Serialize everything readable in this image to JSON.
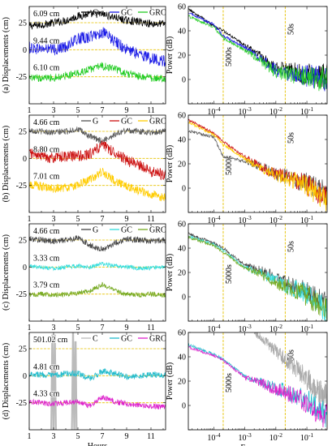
{
  "chart_data": [
    {
      "type": "line",
      "panel": "a-left",
      "ylabel": "(a) Displacements (cm)",
      "xlabel": "",
      "xlim": [
        1,
        12.2
      ],
      "ylim": [
        -50,
        40
      ],
      "xticks": [
        1,
        3,
        5,
        7,
        9,
        11
      ],
      "yticks": [
        -25,
        0,
        25
      ],
      "ref_lines": [
        25,
        0,
        -25
      ],
      "legend": [
        "G",
        "GC",
        "GRC"
      ],
      "legend_colors": [
        "#000000",
        "#1a1ae6",
        "#22cc22"
      ],
      "annotations": [
        "6.09 cm",
        "9.44 cm",
        "6.10 cm"
      ],
      "series": [
        {
          "name": "G",
          "color": "#000000",
          "offset": 25,
          "amp": 6.1,
          "x": [
            1,
            2,
            3,
            4,
            5,
            6,
            7,
            8,
            9,
            10,
            11,
            12
          ],
          "y": [
            22,
            23,
            25,
            27,
            31,
            33,
            33,
            30,
            27,
            26,
            24,
            24
          ]
        },
        {
          "name": "GC",
          "color": "#1a1ae6",
          "offset": 0,
          "amp": 9.4,
          "x": [
            1,
            2,
            3,
            4,
            5,
            6,
            7,
            8,
            9,
            10,
            11,
            12
          ],
          "y": [
            2,
            1,
            0,
            3,
            10,
            12,
            16,
            8,
            0,
            -4,
            -8,
            -10
          ]
        },
        {
          "name": "GRC",
          "color": "#22cc22",
          "offset": -25,
          "amp": 6.1,
          "x": [
            1,
            2,
            3,
            4,
            5,
            6,
            7,
            8,
            9,
            10,
            11,
            12
          ],
          "y": [
            -27,
            -26,
            -26,
            -24,
            -22,
            -18,
            -15,
            -18,
            -22,
            -24,
            -26,
            -27
          ]
        }
      ]
    },
    {
      "type": "line",
      "panel": "a-right",
      "ylabel": "Power (dB)",
      "xlabel": "",
      "xscale": "log",
      "xlim": [
        1.5e-05,
        0.45
      ],
      "ylim": [
        -20,
        60
      ],
      "yticks": [
        -20,
        0,
        20,
        40,
        60
      ],
      "xticks": [
        "10^-4",
        "10^-3",
        "10^-2",
        "10^-1"
      ],
      "vlines": [
        {
          "x": 0.0002,
          "label": "5000s"
        },
        {
          "x": 0.02,
          "label": "50s"
        }
      ],
      "series": [
        {
          "name": "G",
          "color": "#000000",
          "x": [
            1.5e-05,
            0.0001,
            0.0002,
            0.001,
            0.003,
            0.01,
            0.02,
            0.1,
            0.45
          ],
          "y": [
            58,
            44,
            40,
            28,
            20,
            10,
            8,
            4,
            2
          ]
        },
        {
          "name": "GC",
          "color": "#1a1ae6",
          "x": [
            1.5e-05,
            0.0001,
            0.0002,
            0.001,
            0.003,
            0.01,
            0.02,
            0.1,
            0.45
          ],
          "y": [
            55,
            45,
            36,
            26,
            18,
            8,
            6,
            3,
            1
          ]
        },
        {
          "name": "GRC",
          "color": "#22cc22",
          "x": [
            1.5e-05,
            0.0001,
            0.0002,
            0.001,
            0.003,
            0.01,
            0.02,
            0.1,
            0.45
          ],
          "y": [
            52,
            43,
            34,
            24,
            16,
            6,
            5,
            2,
            0
          ]
        }
      ]
    },
    {
      "type": "line",
      "panel": "b-left",
      "ylabel": "(b) Displacements (cm)",
      "xlabel": "",
      "xlim": [
        1,
        12.2
      ],
      "ylim": [
        -50,
        40
      ],
      "xticks": [
        1,
        3,
        5,
        7,
        9,
        11
      ],
      "yticks": [
        -25,
        0,
        25
      ],
      "ref_lines": [
        25,
        0,
        -25
      ],
      "legend": [
        "G",
        "GC",
        "GRC"
      ],
      "legend_colors": [
        "#555555",
        "#cc1111",
        "#ffcc00"
      ],
      "annotations": [
        "4.66 cm",
        "8.80 cm",
        "7.01 cm"
      ],
      "series": [
        {
          "name": "G",
          "color": "#555555",
          "offset": 25,
          "amp": 4.7,
          "x": [
            1,
            2,
            3,
            4,
            5,
            6,
            7,
            8,
            9,
            10,
            11,
            12
          ],
          "y": [
            26,
            25,
            24,
            25,
            27,
            20,
            16,
            22,
            26,
            25,
            24,
            25
          ]
        },
        {
          "name": "GC",
          "color": "#cc1111",
          "offset": 0,
          "amp": 8.8,
          "x": [
            1,
            2,
            3,
            4,
            5,
            6,
            7,
            8,
            9,
            10,
            11,
            12
          ],
          "y": [
            5,
            3,
            0,
            2,
            2,
            4,
            12,
            6,
            -2,
            -6,
            -12,
            -15
          ]
        },
        {
          "name": "GRC",
          "color": "#ffcc00",
          "offset": -25,
          "amp": 7.0,
          "x": [
            1,
            2,
            3,
            4,
            5,
            6,
            7,
            8,
            9,
            10,
            11,
            12
          ],
          "y": [
            -24,
            -26,
            -28,
            -27,
            -24,
            -20,
            -12,
            -20,
            -26,
            -30,
            -33,
            -36
          ]
        }
      ]
    },
    {
      "type": "line",
      "panel": "b-right",
      "ylabel": "Power (dB)",
      "xlabel": "",
      "xscale": "log",
      "xlim": [
        1.5e-05,
        0.45
      ],
      "ylim": [
        -20,
        60
      ],
      "yticks": [
        -20,
        0,
        20,
        40,
        60
      ],
      "xticks": [
        "10^-4",
        "10^-3",
        "10^-2",
        "10^-1"
      ],
      "vlines": [
        {
          "x": 0.0002,
          "label": "5000s"
        },
        {
          "x": 0.02,
          "label": "50s"
        }
      ],
      "series": [
        {
          "name": "G",
          "color": "#555555",
          "x": [
            1.5e-05,
            0.0001,
            0.0002,
            0.001,
            0.003,
            0.01,
            0.02,
            0.1,
            0.45
          ],
          "y": [
            47,
            42,
            26,
            22,
            18,
            12,
            10,
            4,
            -6
          ]
        },
        {
          "name": "GC",
          "color": "#cc1111",
          "x": [
            1.5e-05,
            0.0001,
            0.0002,
            0.001,
            0.003,
            0.01,
            0.02,
            0.1,
            0.45
          ],
          "y": [
            56,
            45,
            38,
            26,
            18,
            12,
            10,
            3,
            -8
          ]
        },
        {
          "name": "GRC",
          "color": "#ffcc00",
          "x": [
            1.5e-05,
            0.0001,
            0.0002,
            0.001,
            0.003,
            0.01,
            0.02,
            0.1,
            0.45
          ],
          "y": [
            54,
            44,
            36,
            24,
            17,
            11,
            9,
            2,
            -10
          ]
        }
      ]
    },
    {
      "type": "line",
      "panel": "c-left",
      "ylabel": "(c) Displacements (cm)",
      "xlabel": "",
      "xlim": [
        1,
        12.2
      ],
      "ylim": [
        -50,
        40
      ],
      "xticks": [
        1,
        3,
        5,
        7,
        9,
        11
      ],
      "yticks": [
        -25,
        0,
        25
      ],
      "ref_lines": [
        25,
        0,
        -25
      ],
      "legend": [
        "G",
        "GC",
        "GRC"
      ],
      "legend_colors": [
        "#444444",
        "#33dddd",
        "#77aa22"
      ],
      "annotations": [
        "4.66 cm",
        "3.33 cm",
        "3.79 cm"
      ],
      "series": [
        {
          "name": "G",
          "color": "#444444",
          "offset": 25,
          "amp": 4.7,
          "x": [
            1,
            2,
            3,
            4,
            5,
            6,
            7,
            8,
            9,
            10,
            11,
            12
          ],
          "y": [
            26,
            25,
            24,
            25,
            27,
            20,
            16,
            22,
            26,
            25,
            24,
            25
          ]
        },
        {
          "name": "GC",
          "color": "#33dddd",
          "offset": 0,
          "amp": 3.3,
          "x": [
            1,
            2,
            3,
            4,
            5,
            6,
            7,
            8,
            9,
            10,
            11,
            12
          ],
          "y": [
            1,
            0,
            -1,
            0,
            1,
            0,
            3,
            1,
            0,
            -1,
            -1,
            0
          ]
        },
        {
          "name": "GRC",
          "color": "#77aa22",
          "offset": -25,
          "amp": 3.8,
          "x": [
            1,
            2,
            3,
            4,
            5,
            6,
            7,
            8,
            9,
            10,
            11,
            12
          ],
          "y": [
            -26,
            -25,
            -26,
            -25,
            -24,
            -22,
            -16,
            -22,
            -25,
            -26,
            -25,
            -26
          ]
        }
      ]
    },
    {
      "type": "line",
      "panel": "c-right",
      "ylabel": "Power (dB)",
      "xlabel": "",
      "xscale": "log",
      "xlim": [
        1.5e-05,
        0.45
      ],
      "ylim": [
        -20,
        60
      ],
      "yticks": [
        -20,
        0,
        20,
        40,
        60
      ],
      "xticks": [
        "10^-4",
        "10^-3",
        "10^-2",
        "10^-1"
      ],
      "vlines": [
        {
          "x": 0.0002,
          "label": "5000s"
        },
        {
          "x": 0.02,
          "label": "50s"
        }
      ],
      "series": [
        {
          "name": "G",
          "color": "#444444",
          "x": [
            1.5e-05,
            0.0001,
            0.0002,
            0.001,
            0.003,
            0.01,
            0.02,
            0.1,
            0.45
          ],
          "y": [
            52,
            44,
            40,
            26,
            22,
            16,
            12,
            4,
            -8
          ]
        },
        {
          "name": "GC",
          "color": "#33dddd",
          "x": [
            1.5e-05,
            0.0001,
            0.0002,
            0.001,
            0.003,
            0.01,
            0.02,
            0.1,
            0.45
          ],
          "y": [
            50,
            43,
            38,
            24,
            20,
            13,
            10,
            2,
            -12
          ]
        },
        {
          "name": "GRC",
          "color": "#77aa22",
          "x": [
            1.5e-05,
            0.0001,
            0.0002,
            0.001,
            0.003,
            0.01,
            0.02,
            0.1,
            0.45
          ],
          "y": [
            49,
            42,
            37,
            23,
            19,
            12,
            9,
            1,
            -13
          ]
        }
      ]
    },
    {
      "type": "line",
      "panel": "d-left",
      "ylabel": "(d) Displacements (cm)",
      "xlabel": "Hours",
      "xlim": [
        1,
        12.2
      ],
      "ylim": [
        -50,
        40
      ],
      "xticks": [
        1,
        3,
        5,
        7,
        9,
        11
      ],
      "yticks": [
        -25,
        0,
        25
      ],
      "ref_lines": [
        25,
        0,
        -25
      ],
      "legend": [
        "C",
        "GC",
        "GRC"
      ],
      "legend_colors": [
        "#bbbbbb",
        "#22bbcc",
        "#dd22cc"
      ],
      "annotations": [
        "501.02 cm",
        "4.81 cm",
        "4.33 cm"
      ],
      "series": [
        {
          "name": "C",
          "color": "#bbbbbb",
          "offset": 25,
          "amp": 0,
          "x": [
            1,
            2.8,
            2.9,
            3.0,
            3.1,
            3.2,
            4.5,
            4.6,
            4.7,
            4.8,
            4.9,
            12.2
          ],
          "y": [
            -60,
            -60,
            45,
            -60,
            45,
            -60,
            -60,
            45,
            -60,
            45,
            -60,
            -60
          ]
        },
        {
          "name": "GC",
          "color": "#22bbcc",
          "offset": 0,
          "amp": 4.8,
          "x": [
            1,
            2,
            3,
            4,
            5,
            6,
            7,
            8,
            9,
            10,
            11,
            12
          ],
          "y": [
            2,
            1,
            0,
            2,
            2,
            -3,
            4,
            2,
            -1,
            0,
            1,
            0
          ]
        },
        {
          "name": "GRC",
          "color": "#dd22cc",
          "offset": -25,
          "amp": 4.3,
          "x": [
            1,
            2,
            3,
            4,
            5,
            6,
            7,
            8,
            9,
            10,
            11,
            12
          ],
          "y": [
            -24,
            -25,
            -26,
            -25,
            -24,
            -28,
            -20,
            -24,
            -26,
            -27,
            -28,
            -29
          ]
        }
      ]
    },
    {
      "type": "line",
      "panel": "d-right",
      "ylabel": "Power (dB)",
      "xlabel": "Frequency",
      "xscale": "log",
      "xlim": [
        1.5e-05,
        0.45
      ],
      "ylim": [
        -20,
        60
      ],
      "yticks": [
        -20,
        0,
        20,
        40,
        60
      ],
      "xticks": [
        "10^-4",
        "10^-3",
        "10^-2",
        "10^-1"
      ],
      "vlines": [
        {
          "x": 0.0002,
          "label": "5000s"
        },
        {
          "x": 0.02,
          "label": "50s"
        }
      ],
      "series": [
        {
          "name": "C",
          "color": "#aaaaaa",
          "x": [
            0.002,
            0.005,
            0.01,
            0.02,
            0.05,
            0.1,
            0.2,
            0.45
          ],
          "y": [
            60,
            52,
            45,
            38,
            30,
            22,
            14,
            8
          ]
        },
        {
          "name": "GC",
          "color": "#22bbcc",
          "x": [
            1.5e-05,
            0.0001,
            0.0002,
            0.001,
            0.003,
            0.01,
            0.02,
            0.1,
            0.45
          ],
          "y": [
            50,
            42,
            38,
            24,
            20,
            14,
            12,
            4,
            -8
          ]
        },
        {
          "name": "GRC",
          "color": "#dd22cc",
          "x": [
            1.5e-05,
            0.0001,
            0.0002,
            0.001,
            0.003,
            0.01,
            0.02,
            0.1,
            0.45
          ],
          "y": [
            48,
            41,
            37,
            23,
            19,
            13,
            11,
            2,
            -10
          ]
        }
      ]
    }
  ]
}
